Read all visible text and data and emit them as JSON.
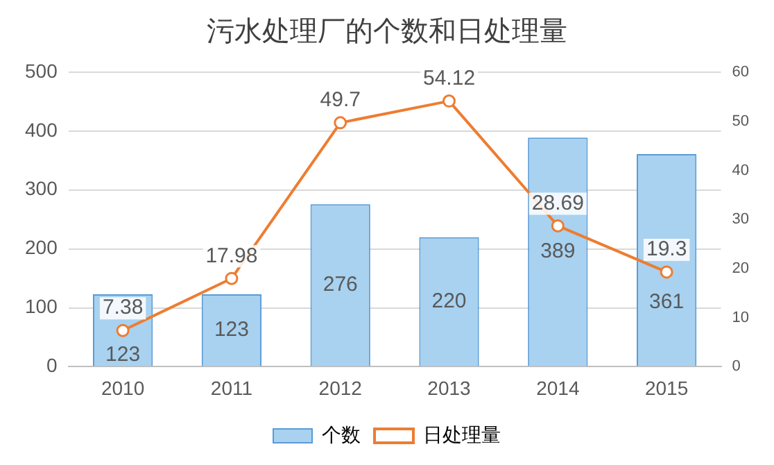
{
  "chart_data": {
    "type": "bar",
    "title": "污水处理厂的个数和日处理量",
    "categories": [
      "2010",
      "2011",
      "2012",
      "2013",
      "2014",
      "2015"
    ],
    "series": [
      {
        "name": "个数",
        "color": "#a8d2f0",
        "values": [
          123,
          123,
          276,
          220,
          389,
          361
        ]
      },
      {
        "name": "日处理量",
        "type": "line",
        "axis": "y2",
        "color": "#ed7d31",
        "values": [
          7.38,
          17.98,
          49.7,
          54.12,
          28.69,
          19.3
        ]
      }
    ],
    "ylim": [
      0,
      500
    ],
    "yticks": [
      0,
      100,
      200,
      300,
      400,
      500
    ],
    "y2lim": [
      0,
      60
    ],
    "y2ticks": [
      0,
      10,
      20,
      30,
      40,
      50,
      60
    ],
    "grid": "y",
    "legend": "bottom",
    "marker": "circle",
    "line_style": "solid",
    "data_labels": true
  }
}
